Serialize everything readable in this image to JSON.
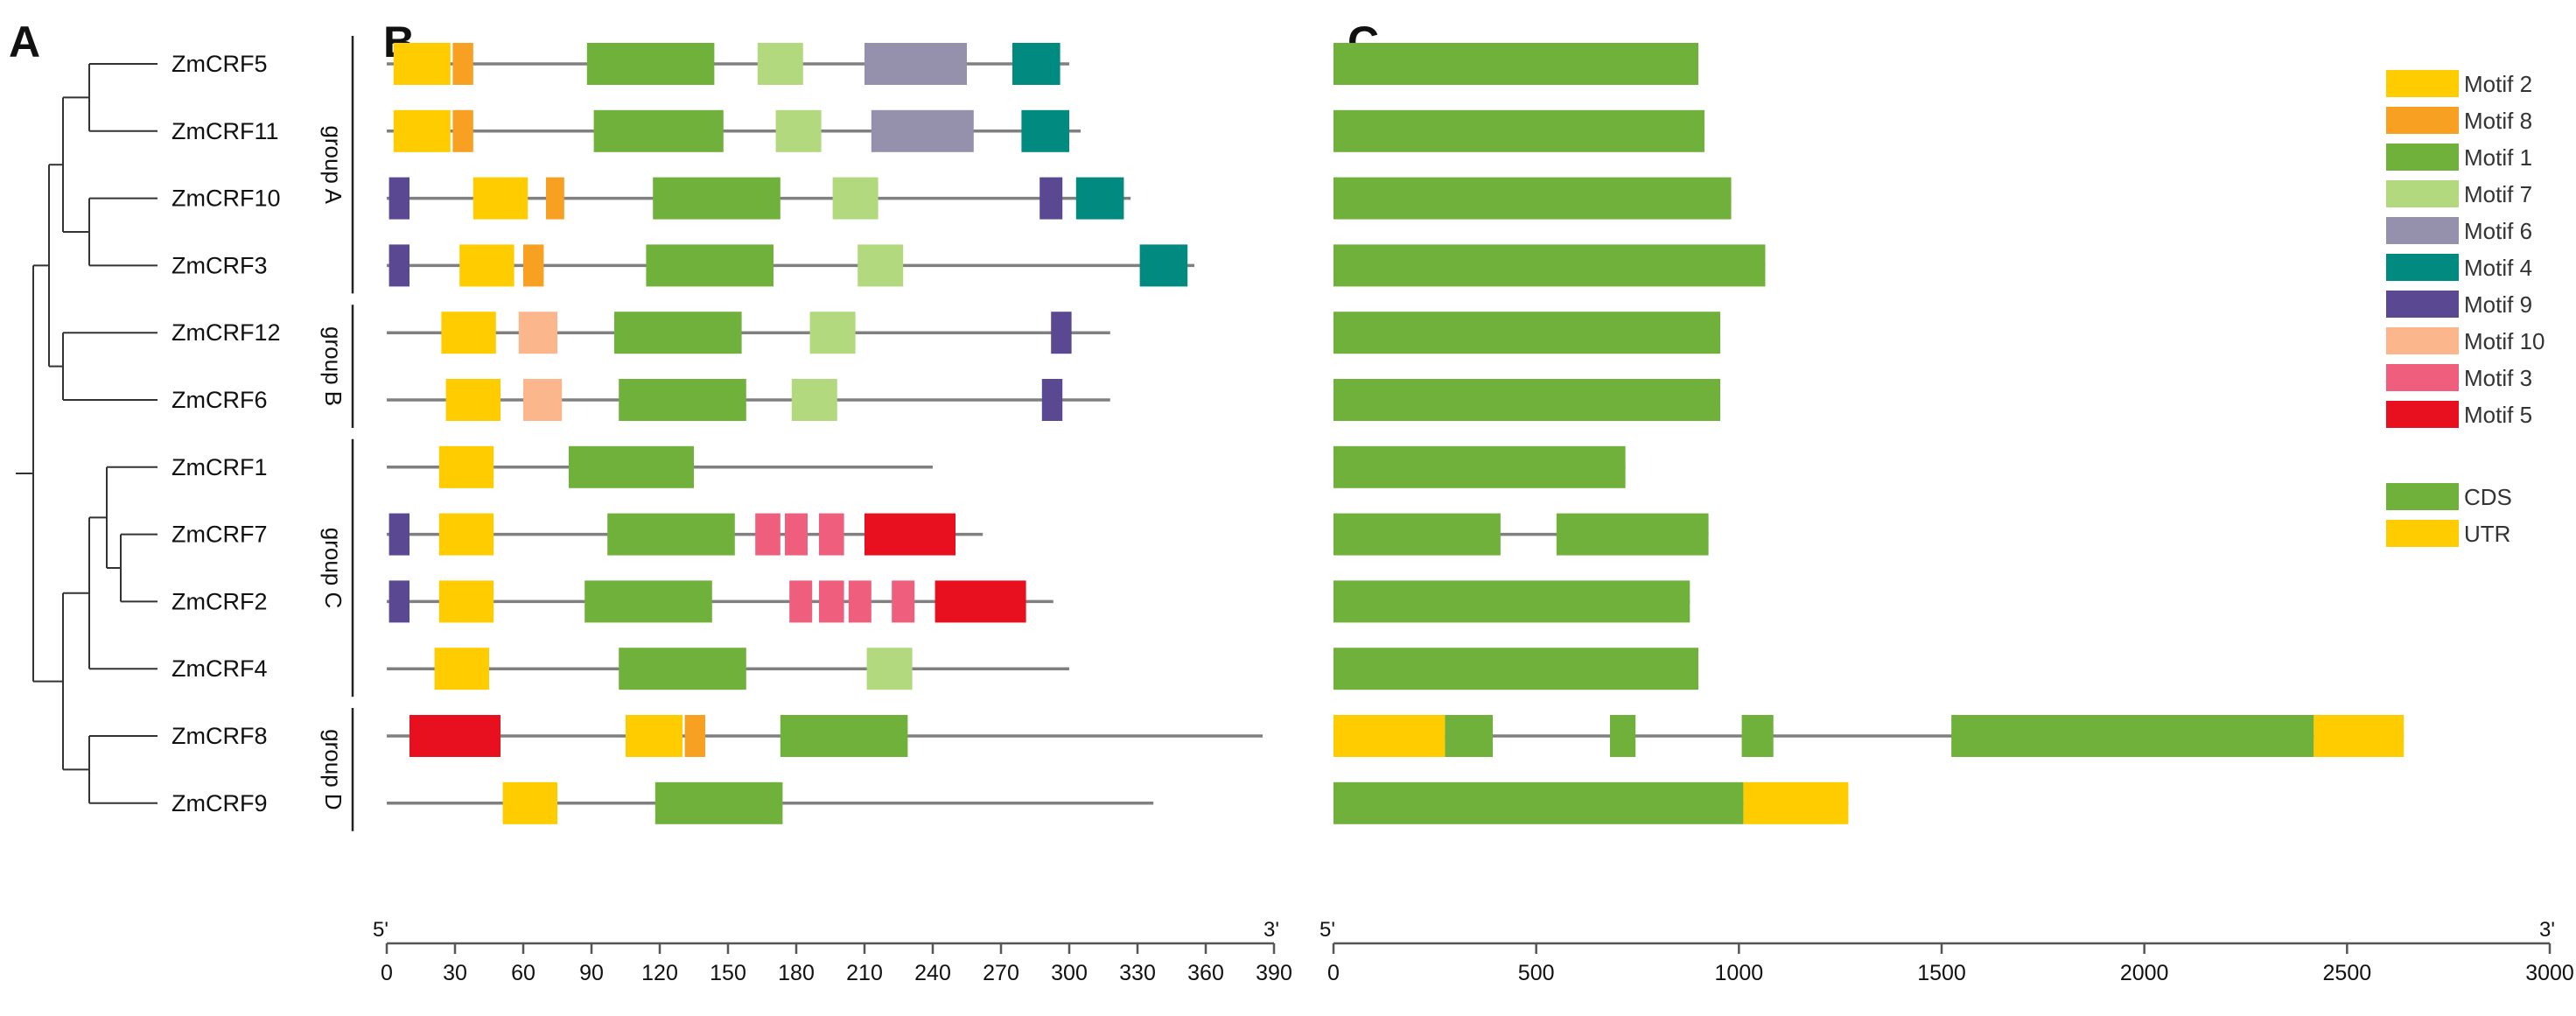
{
  "panels": {
    "a": "A",
    "b": "B",
    "c": "C"
  },
  "chart_data": [
    {
      "type": "phylogenetic-tree",
      "panel": "A",
      "leaves": [
        "ZmCRF5",
        "ZmCRF11",
        "ZmCRF10",
        "ZmCRF3",
        "ZmCRF12",
        "ZmCRF6",
        "ZmCRF1",
        "ZmCRF7",
        "ZmCRF2",
        "ZmCRF4",
        "ZmCRF8",
        "ZmCRF9"
      ],
      "clades": [
        [
          "ZmCRF5",
          "ZmCRF11"
        ],
        [
          "ZmCRF10",
          "ZmCRF3"
        ],
        [
          "ZmCRF12",
          "ZmCRF6"
        ],
        [
          "ZmCRF7",
          "ZmCRF2"
        ],
        [
          "ZmCRF1",
          "ZmCRF7",
          "ZmCRF2"
        ],
        [
          "ZmCRF1",
          "ZmCRF7",
          "ZmCRF2",
          "ZmCRF4"
        ],
        [
          "ZmCRF8",
          "ZmCRF9"
        ]
      ]
    },
    {
      "type": "motif-map",
      "panel": "B",
      "xlabel_start": "5'",
      "xlabel_end": "3'",
      "xlim": [
        0,
        390
      ],
      "xticks": [
        0,
        30,
        60,
        90,
        120,
        150,
        180,
        210,
        240,
        270,
        300,
        330,
        360,
        390
      ],
      "groups": [
        {
          "label": "group A",
          "genes": [
            "ZmCRF5",
            "ZmCRF11",
            "ZmCRF10",
            "ZmCRF3"
          ]
        },
        {
          "label": "group B",
          "genes": [
            "ZmCRF12",
            "ZmCRF6"
          ]
        },
        {
          "label": "group C",
          "genes": [
            "ZmCRF1",
            "ZmCRF7",
            "ZmCRF2",
            "ZmCRF4"
          ]
        },
        {
          "label": "group D",
          "genes": [
            "ZmCRF8",
            "ZmCRF9"
          ]
        }
      ],
      "genes": [
        {
          "name": "ZmCRF5",
          "length": 300,
          "motifs": [
            [
              "Motif 2",
              3,
              28
            ],
            [
              "Motif 8",
              29,
              38
            ],
            [
              "Motif 1",
              88,
              144
            ],
            [
              "Motif 7",
              163,
              183
            ],
            [
              "Motif 6",
              210,
              255
            ],
            [
              "Motif 4",
              275,
              296
            ]
          ]
        },
        {
          "name": "ZmCRF11",
          "length": 305,
          "motifs": [
            [
              "Motif 2",
              3,
              28
            ],
            [
              "Motif 8",
              29,
              38
            ],
            [
              "Motif 1",
              91,
              148
            ],
            [
              "Motif 7",
              171,
              191
            ],
            [
              "Motif 6",
              213,
              258
            ],
            [
              "Motif 4",
              279,
              300
            ]
          ]
        },
        {
          "name": "ZmCRF10",
          "length": 327,
          "motifs": [
            [
              "Motif 9",
              1,
              10
            ],
            [
              "Motif 2",
              38,
              62
            ],
            [
              "Motif 8",
              70,
              78
            ],
            [
              "Motif 1",
              117,
              173
            ],
            [
              "Motif 7",
              196,
              216
            ],
            [
              "Motif 9",
              287,
              297
            ],
            [
              "Motif 4",
              303,
              324
            ]
          ]
        },
        {
          "name": "ZmCRF3",
          "length": 355,
          "motifs": [
            [
              "Motif 9",
              1,
              10
            ],
            [
              "Motif 2",
              32,
              56
            ],
            [
              "Motif 8",
              60,
              69
            ],
            [
              "Motif 1",
              114,
              170
            ],
            [
              "Motif 7",
              207,
              227
            ],
            [
              "Motif 4",
              331,
              352
            ]
          ]
        },
        {
          "name": "ZmCRF12",
          "length": 318,
          "motifs": [
            [
              "Motif 2",
              24,
              48
            ],
            [
              "Motif 10",
              58,
              75
            ],
            [
              "Motif 1",
              100,
              156
            ],
            [
              "Motif 7",
              186,
              206
            ],
            [
              "Motif 9",
              292,
              301
            ]
          ]
        },
        {
          "name": "ZmCRF6",
          "length": 318,
          "motifs": [
            [
              "Motif 2",
              26,
              50
            ],
            [
              "Motif 10",
              60,
              77
            ],
            [
              "Motif 1",
              102,
              158
            ],
            [
              "Motif 7",
              178,
              198
            ],
            [
              "Motif 9",
              288,
              297
            ]
          ]
        },
        {
          "name": "ZmCRF1",
          "length": 240,
          "motifs": [
            [
              "Motif 2",
              23,
              47
            ],
            [
              "Motif 1",
              80,
              135
            ]
          ]
        },
        {
          "name": "ZmCRF7",
          "length": 262,
          "motifs": [
            [
              "Motif 9",
              1,
              10
            ],
            [
              "Motif 2",
              23,
              47
            ],
            [
              "Motif 1",
              97,
              153
            ],
            [
              "Motif 3",
              162,
              173
            ],
            [
              "Motif 3",
              175,
              185
            ],
            [
              "Motif 3",
              190,
              201
            ],
            [
              "Motif 5",
              210,
              250
            ]
          ]
        },
        {
          "name": "ZmCRF2",
          "length": 293,
          "motifs": [
            [
              "Motif 9",
              1,
              10
            ],
            [
              "Motif 2",
              23,
              47
            ],
            [
              "Motif 1",
              87,
              143
            ],
            [
              "Motif 3",
              177,
              187
            ],
            [
              "Motif 3",
              190,
              201
            ],
            [
              "Motif 3",
              203,
              213
            ],
            [
              "Motif 3",
              222,
              232
            ],
            [
              "Motif 5",
              241,
              281
            ]
          ]
        },
        {
          "name": "ZmCRF4",
          "length": 300,
          "motifs": [
            [
              "Motif 2",
              21,
              45
            ],
            [
              "Motif 1",
              102,
              158
            ],
            [
              "Motif 7",
              211,
              231
            ]
          ]
        },
        {
          "name": "ZmCRF8",
          "length": 385,
          "motifs": [
            [
              "Motif 5",
              10,
              50
            ],
            [
              "Motif 2",
              105,
              130
            ],
            [
              "Motif 8",
              131,
              140
            ],
            [
              "Motif 1",
              173,
              229
            ]
          ]
        },
        {
          "name": "ZmCRF9",
          "length": 337,
          "motifs": [
            [
              "Motif 2",
              51,
              75
            ],
            [
              "Motif 1",
              118,
              174
            ]
          ]
        }
      ]
    },
    {
      "type": "gene-structure",
      "panel": "C",
      "xlabel_start": "5'",
      "xlabel_end": "3'",
      "xlim": [
        0,
        3000
      ],
      "xticks": [
        0,
        500,
        1000,
        1500,
        2000,
        2500,
        3000
      ],
      "genes": [
        {
          "name": "ZmCRF5",
          "length": 900,
          "features": [
            [
              "CDS",
              0,
              900
            ]
          ]
        },
        {
          "name": "ZmCRF11",
          "length": 915,
          "features": [
            [
              "CDS",
              0,
              915
            ]
          ]
        },
        {
          "name": "ZmCRF10",
          "length": 981,
          "features": [
            [
              "CDS",
              0,
              981
            ]
          ]
        },
        {
          "name": "ZmCRF3",
          "length": 1065,
          "features": [
            [
              "CDS",
              0,
              1065
            ]
          ]
        },
        {
          "name": "ZmCRF12",
          "length": 954,
          "features": [
            [
              "CDS",
              0,
              954
            ]
          ]
        },
        {
          "name": "ZmCRF6",
          "length": 954,
          "features": [
            [
              "CDS",
              0,
              954
            ]
          ]
        },
        {
          "name": "ZmCRF1",
          "length": 720,
          "features": [
            [
              "CDS",
              0,
              720
            ]
          ]
        },
        {
          "name": "ZmCRF7",
          "length": 925,
          "features": [
            [
              "CDS",
              0,
              412
            ],
            [
              "CDS",
              550,
              925
            ]
          ]
        },
        {
          "name": "ZmCRF2",
          "length": 879,
          "features": [
            [
              "CDS",
              0,
              879
            ]
          ]
        },
        {
          "name": "ZmCRF4",
          "length": 900,
          "features": [
            [
              "CDS",
              0,
              900
            ]
          ]
        },
        {
          "name": "ZmCRF8",
          "length": 2640,
          "features": [
            [
              "UTR",
              0,
              275
            ],
            [
              "CDS",
              275,
              393
            ],
            [
              "CDS",
              682,
              745
            ],
            [
              "CDS",
              1007,
              1085
            ],
            [
              "CDS",
              1524,
              2418
            ],
            [
              "UTR",
              2418,
              2640
            ]
          ]
        },
        {
          "name": "ZmCRF9",
          "length": 1270,
          "features": [
            [
              "CDS",
              0,
              1011
            ],
            [
              "UTR",
              1011,
              1270
            ]
          ]
        }
      ]
    }
  ],
  "legend": {
    "motifs": [
      {
        "label": "Motif 2",
        "color": "#ffcc00"
      },
      {
        "label": "Motif 8",
        "color": "#f7a021"
      },
      {
        "label": "Motif 1",
        "color": "#70b13c"
      },
      {
        "label": "Motif 7",
        "color": "#b2d97e"
      },
      {
        "label": "Motif 6",
        "color": "#9590ac"
      },
      {
        "label": "Motif 4",
        "color": "#008a80"
      },
      {
        "label": "Motif 9",
        "color": "#5a4893"
      },
      {
        "label": "Motif 10",
        "color": "#fbb68c"
      },
      {
        "label": "Motif 3",
        "color": "#ef5f7d"
      },
      {
        "label": "Motif 5",
        "color": "#e8101f"
      }
    ],
    "structure": [
      {
        "label": "CDS",
        "color": "#70b13c"
      },
      {
        "label": "UTR",
        "color": "#ffcc00"
      }
    ]
  },
  "colors": {
    "line": "#808080",
    "axis": "#555555",
    "tree": "#333333"
  }
}
